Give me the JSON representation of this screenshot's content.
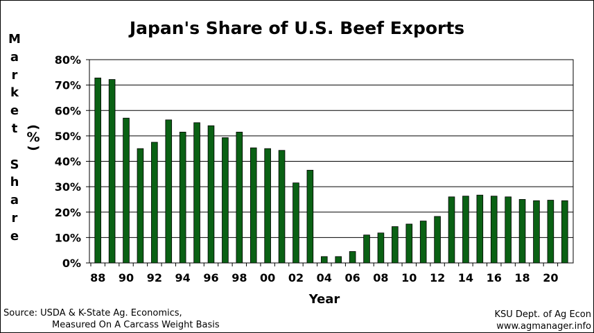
{
  "chart_data": {
    "type": "bar",
    "title": "Japan's Share of U.S. Beef Exports",
    "ylabel": "Market Share",
    "ylabel_unit": "(%)",
    "xlabel": "Year",
    "ylim": [
      0,
      80
    ],
    "yticks": [
      "0%",
      "10%",
      "20%",
      "30%",
      "40%",
      "50%",
      "60%",
      "70%",
      "80%"
    ],
    "grid": true,
    "bar_color": "#0a6114",
    "categories": [
      "88",
      "89",
      "90",
      "91",
      "92",
      "93",
      "94",
      "95",
      "96",
      "97",
      "98",
      "99",
      "00",
      "01",
      "02",
      "03",
      "04",
      "05",
      "06",
      "07",
      "08",
      "09",
      "10",
      "11",
      "12",
      "13",
      "14",
      "15",
      "16",
      "17",
      "18",
      "19",
      "20",
      "21"
    ],
    "xtick_labels": [
      "88",
      "90",
      "92",
      "94",
      "96",
      "98",
      "00",
      "02",
      "04",
      "06",
      "08",
      "10",
      "12",
      "14",
      "16",
      "18",
      "20"
    ],
    "values": [
      72.8,
      72.2,
      57.0,
      45.0,
      47.5,
      56.3,
      51.5,
      55.2,
      54.0,
      49.3,
      51.5,
      45.3,
      45.0,
      44.3,
      31.5,
      36.5,
      2.5,
      2.5,
      4.5,
      11.0,
      11.8,
      14.3,
      15.3,
      16.5,
      18.3,
      26.0,
      26.3,
      26.7,
      26.3,
      26.0,
      25.0,
      24.5,
      24.7,
      24.5
    ]
  },
  "footer": {
    "source_line1": "Source:  USDA & K-State Ag. Economics,",
    "source_line2": "Measured On A Carcass Weight Basis",
    "credit_line1": "KSU Dept. of Ag Econ",
    "credit_line2": "www.agmanager.info"
  }
}
